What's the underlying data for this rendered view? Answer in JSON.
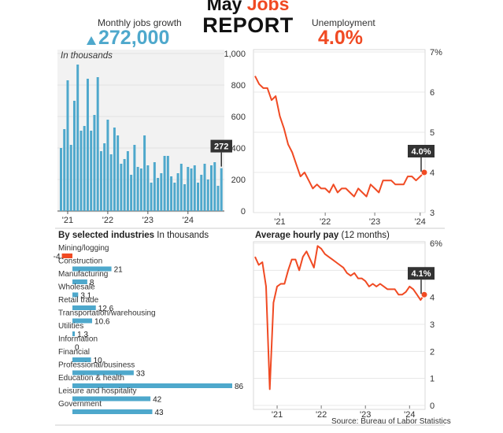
{
  "header": {
    "title_word1": "May ",
    "title_word2": "Jobs",
    "title_line2": "REPORT",
    "jobs_label": "Monthly jobs growth",
    "jobs_value": "272,000",
    "unemp_label": "Unemployment",
    "unemp_value": "4.0%"
  },
  "colors": {
    "blue": "#4ea8cc",
    "red": "#f04a23",
    "grid": "#d4d4d4",
    "panel": "#f3f3f3",
    "callout": "#333333"
  },
  "source": "Source: Bureau of Labor Statistics",
  "chart_data": [
    {
      "type": "bar",
      "title": "Monthly jobs growth",
      "subtitle": "In thousands",
      "x_ticks": [
        "'21",
        "'22",
        "'23",
        "'24"
      ],
      "ylim": [
        0,
        1000
      ],
      "y_ticks": [
        "0",
        "200",
        "400",
        "600",
        "800",
        "1,000"
      ],
      "callout": "272",
      "values": [
        400,
        520,
        830,
        420,
        700,
        930,
        510,
        540,
        840,
        510,
        610,
        850,
        380,
        430,
        580,
        360,
        530,
        480,
        300,
        330,
        380,
        230,
        420,
        280,
        270,
        480,
        290,
        180,
        310,
        210,
        240,
        350,
        350,
        220,
        180,
        240,
        300,
        170,
        280,
        270,
        290,
        180,
        230,
        300,
        200,
        290,
        310,
        160,
        272
      ]
    },
    {
      "type": "line",
      "title": "Unemployment",
      "x_ticks": [
        "'21",
        "'22",
        "'23",
        "'24"
      ],
      "ylim": [
        3,
        7
      ],
      "y_ticks": [
        "3",
        "4",
        "5",
        "6",
        "7%"
      ],
      "callout": "4.0%",
      "values": [
        6.4,
        6.2,
        6.1,
        6.1,
        5.8,
        5.9,
        5.4,
        5.1,
        4.7,
        4.5,
        4.2,
        3.9,
        4.0,
        3.8,
        3.6,
        3.7,
        3.6,
        3.6,
        3.5,
        3.7,
        3.5,
        3.6,
        3.6,
        3.5,
        3.4,
        3.6,
        3.5,
        3.4,
        3.7,
        3.6,
        3.5,
        3.8,
        3.8,
        3.8,
        3.7,
        3.7,
        3.7,
        3.9,
        3.9,
        3.8,
        3.9,
        4.0
      ]
    },
    {
      "type": "bar",
      "orientation": "horizontal",
      "title": "By selected industries",
      "subtitle": "In thousands",
      "categories": [
        "Mining/logging",
        "Construction",
        "Manufacturing",
        "Wholesale",
        "Retail trade",
        "Transportation/warehousing",
        "Utilities",
        "Information",
        "Financial",
        "Professional/business",
        "Education & health",
        "Leisure and hospitality",
        "Government"
      ],
      "values": [
        -4,
        21,
        8,
        3.1,
        12.6,
        10.6,
        1.3,
        0,
        10,
        33,
        86,
        42,
        43
      ],
      "labels": [
        "-4",
        "21",
        "8",
        "3.1",
        "12.6",
        "10.6",
        "1.3",
        "0",
        "10",
        "33",
        "86",
        "42",
        "43"
      ]
    },
    {
      "type": "line",
      "title": "Average hourly pay",
      "subtitle": "(12 months)",
      "x_ticks": [
        "'21",
        "'22",
        "'23",
        "'24"
      ],
      "ylim": [
        0,
        6
      ],
      "y_ticks": [
        "0",
        "1",
        "2",
        "3",
        "4",
        "5",
        "6%"
      ],
      "callout": "4.1%",
      "values": [
        5.5,
        5.2,
        5.3,
        4.4,
        0.6,
        3.8,
        4.4,
        4.5,
        4.5,
        5.0,
        5.4,
        5.4,
        5.0,
        5.5,
        5.7,
        5.4,
        5.1,
        5.9,
        5.8,
        5.6,
        5.5,
        5.4,
        5.3,
        5.2,
        5.1,
        4.9,
        4.8,
        4.9,
        4.7,
        4.7,
        4.6,
        4.4,
        4.5,
        4.4,
        4.5,
        4.4,
        4.3,
        4.3,
        4.3,
        4.1,
        4.1,
        4.2,
        4.4,
        4.3,
        4.1,
        3.9,
        4.1
      ]
    }
  ]
}
